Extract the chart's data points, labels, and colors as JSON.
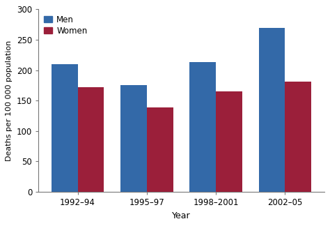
{
  "categories": [
    "1992–94",
    "1995–97",
    "1998–2001",
    "2002–05"
  ],
  "men_values": [
    210,
    175,
    213,
    269
  ],
  "women_values": [
    172,
    139,
    165,
    181
  ],
  "men_color": "#3369a8",
  "women_color": "#9b1f3a",
  "xlabel": "Year",
  "ylabel": "Deaths per 100 000 population",
  "ylim": [
    0,
    300
  ],
  "yticks": [
    0,
    50,
    100,
    150,
    200,
    250,
    300
  ],
  "legend_men": "Men",
  "legend_women": "Women",
  "bar_width": 0.38,
  "background_color": "#ffffff",
  "spine_color": "#777777"
}
